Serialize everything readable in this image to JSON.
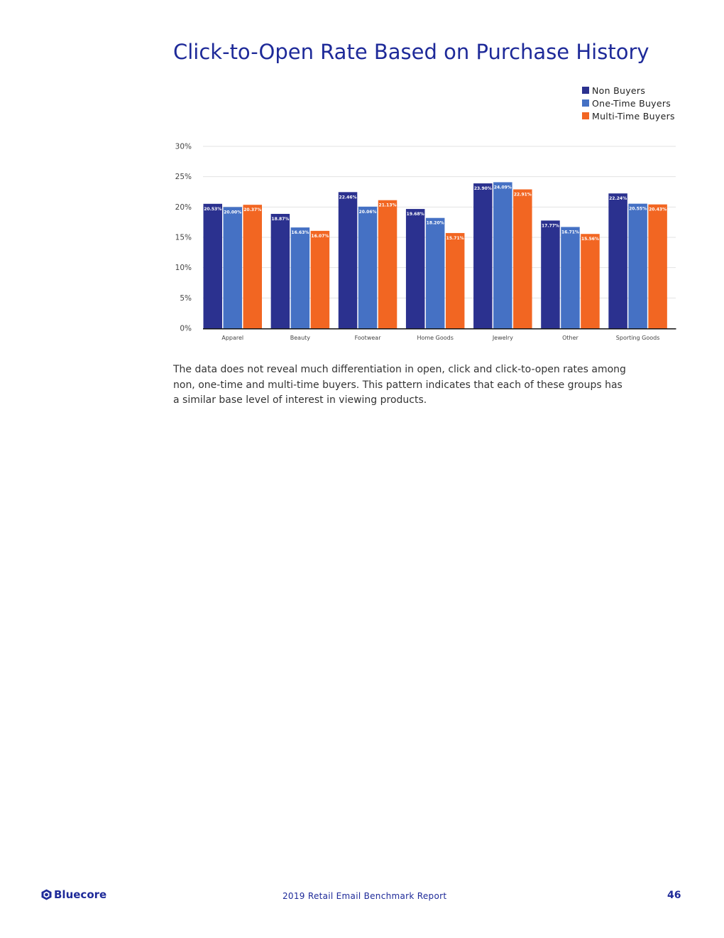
{
  "page": {
    "title": "Click-to-Open Rate Based on Purchase History",
    "description": "The data does not reveal much differentiation in open, click and click-to-open rates among non, one-time and multi-time buyers. This pattern indicates that each of these groups has a similar base level of interest in viewing products.",
    "footer": {
      "brand": "Bluecore",
      "brand_icon": "bluecore-logo-icon",
      "report_title": "2019 Retail Email Benchmark Report",
      "page_number": "46"
    }
  },
  "chart_data": {
    "type": "bar",
    "title": "Click-to-Open Rate Based on Purchase History",
    "categories": [
      "Apparel",
      "Beauty",
      "Footwear",
      "Home Goods",
      "Jewelry",
      "Other",
      "Sporting Goods"
    ],
    "series": [
      {
        "name": "Non Buyers",
        "color": "#2b318f",
        "values": [
          20.53,
          18.87,
          22.46,
          19.68,
          23.9,
          17.77,
          22.24
        ],
        "labels": [
          "20.53%",
          "18.87%",
          "22.46%",
          "19.68%",
          "23.90%",
          "17.77%",
          "22.24%"
        ]
      },
      {
        "name": "One-Time Buyers",
        "color": "#4571c4",
        "values": [
          20.0,
          16.63,
          20.06,
          18.2,
          24.09,
          16.71,
          20.55
        ],
        "labels": [
          "20.00%",
          "16.63%",
          "20.06%",
          "18.20%",
          "24.09%",
          "16.71%",
          "20.55%"
        ]
      },
      {
        "name": "Multi-Time Buyers",
        "color": "#f26622",
        "values": [
          20.37,
          16.07,
          21.13,
          15.71,
          22.91,
          15.56,
          20.43
        ],
        "labels": [
          "20.37%",
          "16.07%",
          "21.13%",
          "15.71%",
          "22.91%",
          "15.56%",
          "20.43%"
        ]
      }
    ],
    "yticks": [
      "0%",
      "5%",
      "10%",
      "15%",
      "20%",
      "25%",
      "30%"
    ],
    "ytick_values": [
      0,
      5,
      10,
      15,
      20,
      25,
      30
    ],
    "ylim": [
      0,
      30
    ],
    "xlabel": "",
    "ylabel": "",
    "grid": true,
    "legend_position": "top-right"
  }
}
